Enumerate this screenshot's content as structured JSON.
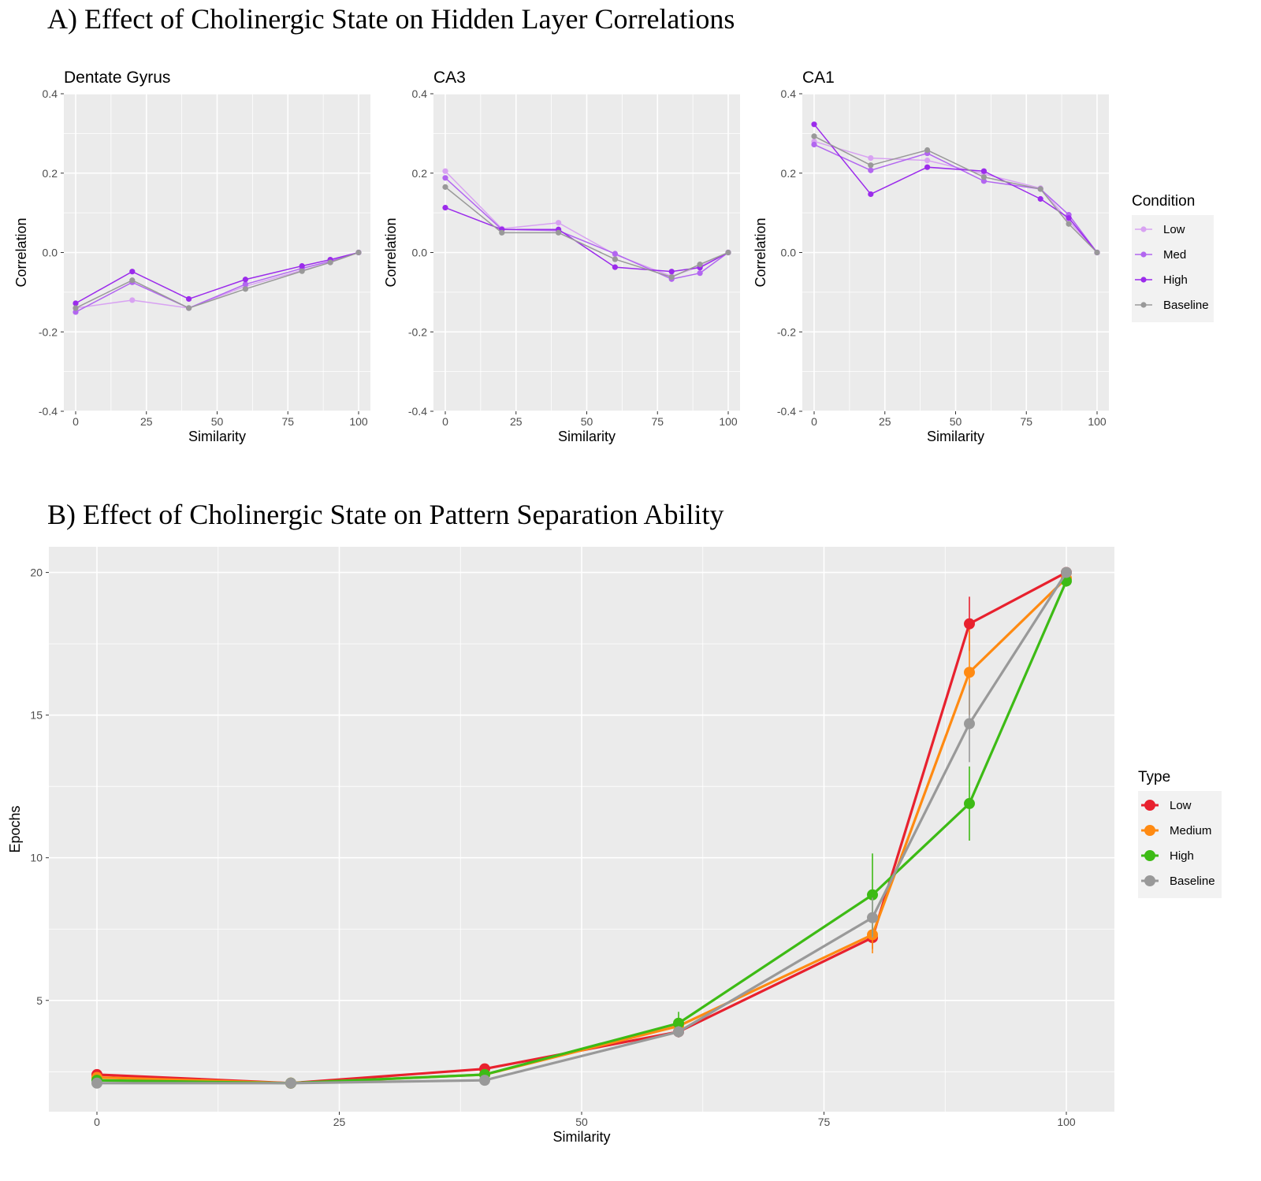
{
  "panel_a_title": "A) Effect of Cholinergic State on Hidden Layer Correlations",
  "panel_b_title": "B) Effect of Cholinergic State on Pattern Separation Ability",
  "colors": {
    "low_a": "#D8A2F2",
    "med_a": "#B266F0",
    "high_a": "#9B2BEB",
    "baseline": "#999999",
    "low_b": "#E8212E",
    "medium_b": "#FF8A12",
    "high_b": "#3DBB15",
    "panel_bg": "#EBEBEB",
    "grid": "#FFFFFF"
  },
  "chart_data": [
    {
      "type": "line",
      "panel": "A",
      "title": "Dentate Gyrus",
      "xlabel": "Similarity",
      "ylabel": "Correlation",
      "x": [
        0,
        20,
        40,
        60,
        80,
        90,
        100
      ],
      "xticks": [
        "0",
        "25",
        "50",
        "75",
        "100"
      ],
      "yticks": [
        "-0.4",
        "-0.2",
        "0.0",
        "0.2",
        "0.4"
      ],
      "xlim": [
        0,
        100
      ],
      "ylim": [
        -0.4,
        0.4
      ],
      "grid": true,
      "series": [
        {
          "name": "Low",
          "color_key": "low_a",
          "values": [
            -0.14,
            -0.12,
            -0.14,
            -0.085,
            -0.045,
            -0.025,
            0.0
          ]
        },
        {
          "name": "Med",
          "color_key": "med_a",
          "values": [
            -0.15,
            -0.075,
            -0.14,
            -0.08,
            -0.04,
            -0.022,
            0.0
          ]
        },
        {
          "name": "High",
          "color_key": "high_a",
          "values": [
            -0.128,
            -0.048,
            -0.117,
            -0.068,
            -0.034,
            -0.018,
            0.0
          ]
        },
        {
          "name": "Baseline",
          "color_key": "baseline",
          "values": [
            -0.14,
            -0.07,
            -0.14,
            -0.092,
            -0.047,
            -0.025,
            0.0
          ]
        }
      ]
    },
    {
      "type": "line",
      "panel": "A",
      "title": "CA3",
      "xlabel": "Similarity",
      "ylabel": "Correlation",
      "x": [
        0,
        20,
        40,
        60,
        80,
        90,
        100
      ],
      "xticks": [
        "0",
        "25",
        "50",
        "75",
        "100"
      ],
      "yticks": [
        "-0.4",
        "-0.2",
        "0.0",
        "0.2",
        "0.4"
      ],
      "xlim": [
        0,
        100
      ],
      "ylim": [
        -0.4,
        0.4
      ],
      "grid": true,
      "series": [
        {
          "name": "Low",
          "color_key": "low_a",
          "values": [
            0.205,
            0.06,
            0.075,
            -0.005,
            -0.06,
            -0.035,
            0.0
          ]
        },
        {
          "name": "Med",
          "color_key": "med_a",
          "values": [
            0.188,
            0.058,
            0.055,
            -0.003,
            -0.067,
            -0.052,
            0.0
          ]
        },
        {
          "name": "High",
          "color_key": "high_a",
          "values": [
            0.113,
            0.058,
            0.058,
            -0.037,
            -0.048,
            -0.038,
            0.0
          ]
        },
        {
          "name": "Baseline",
          "color_key": "baseline",
          "values": [
            0.165,
            0.05,
            0.05,
            -0.017,
            -0.062,
            -0.03,
            0.0
          ]
        }
      ]
    },
    {
      "type": "line",
      "panel": "A",
      "title": "CA1",
      "xlabel": "Similarity",
      "ylabel": "Correlation",
      "x": [
        0,
        20,
        40,
        60,
        80,
        90,
        100
      ],
      "xticks": [
        "0",
        "25",
        "50",
        "75",
        "100"
      ],
      "yticks": [
        "-0.4",
        "-0.2",
        "0.0",
        "0.2",
        "0.4"
      ],
      "xlim": [
        0,
        100
      ],
      "ylim": [
        -0.4,
        0.4
      ],
      "grid": true,
      "series": [
        {
          "name": "Low",
          "color_key": "low_a",
          "values": [
            0.28,
            0.238,
            0.232,
            0.198,
            0.162,
            0.08,
            0.0
          ]
        },
        {
          "name": "Med",
          "color_key": "med_a",
          "values": [
            0.272,
            0.207,
            0.25,
            0.18,
            0.16,
            0.095,
            0.0
          ]
        },
        {
          "name": "High",
          "color_key": "high_a",
          "values": [
            0.323,
            0.147,
            0.215,
            0.205,
            0.135,
            0.087,
            0.0
          ]
        },
        {
          "name": "Baseline",
          "color_key": "baseline",
          "values": [
            0.293,
            0.22,
            0.258,
            0.19,
            0.16,
            0.072,
            0.0
          ]
        }
      ]
    },
    {
      "type": "line",
      "panel": "B",
      "title": "",
      "xlabel": "Similarity",
      "ylabel": "Epochs",
      "x": [
        0,
        20,
        40,
        60,
        80,
        90,
        100
      ],
      "xticks": [
        "0",
        "25",
        "50",
        "75",
        "100"
      ],
      "yticks": [
        "5",
        "10",
        "15",
        "20"
      ],
      "xlim": [
        0,
        100
      ],
      "ylim": [
        1.1,
        20.9
      ],
      "grid": true,
      "series": [
        {
          "name": "Low",
          "color_key": "low_b",
          "values": [
            2.4,
            2.1,
            2.6,
            3.9,
            7.2,
            18.2,
            20.0
          ],
          "err": [
            0,
            0,
            0,
            0.2,
            0.4,
            0.95,
            0
          ]
        },
        {
          "name": "Medium",
          "color_key": "medium_b",
          "values": [
            2.3,
            2.1,
            2.4,
            4.1,
            7.3,
            16.5,
            19.8
          ],
          "err": [
            0,
            0,
            0,
            0.2,
            0.65,
            1.5,
            0
          ]
        },
        {
          "name": "High",
          "color_key": "high_b",
          "values": [
            2.2,
            2.1,
            2.4,
            4.2,
            8.7,
            11.9,
            19.7
          ],
          "err": [
            0,
            0,
            0,
            0.4,
            1.45,
            1.3,
            0.2
          ]
        },
        {
          "name": "Baseline",
          "color_key": "baseline",
          "values": [
            2.1,
            2.1,
            2.2,
            3.9,
            7.9,
            14.7,
            20.0
          ],
          "err": [
            0,
            0,
            0,
            0.2,
            0.7,
            1.35,
            0
          ]
        }
      ]
    }
  ],
  "legend_a": {
    "title": "Condition",
    "entries": [
      {
        "label": "Low",
        "color_key": "low_a"
      },
      {
        "label": "Med",
        "color_key": "med_a"
      },
      {
        "label": "High",
        "color_key": "high_a"
      },
      {
        "label": "Baseline",
        "color_key": "baseline"
      }
    ]
  },
  "legend_b": {
    "title": "Type",
    "entries": [
      {
        "label": "Low",
        "color_key": "low_b"
      },
      {
        "label": "Medium",
        "color_key": "medium_b"
      },
      {
        "label": "High",
        "color_key": "high_b"
      },
      {
        "label": "Baseline",
        "color_key": "baseline"
      }
    ]
  }
}
